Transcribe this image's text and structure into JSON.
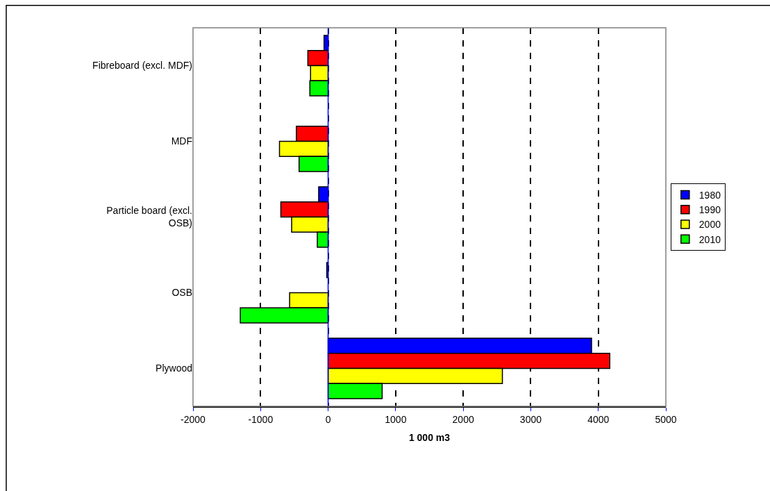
{
  "chart_data": {
    "type": "bar",
    "orientation": "horizontal",
    "xlabel": "1 000 m3",
    "categories": [
      "Fibreboard (excl. MDF)",
      "MDF",
      "Particle board (excl. OSB)",
      "OSB",
      "Plywood"
    ],
    "series": [
      {
        "name": "1980",
        "color": "#0000ff",
        "values": [
          -60,
          null,
          -140,
          -20,
          3900
        ]
      },
      {
        "name": "1990",
        "color": "#ff0000",
        "values": [
          -300,
          -470,
          -700,
          null,
          4170
        ]
      },
      {
        "name": "2000",
        "color": "#ffff00",
        "values": [
          -260,
          -720,
          -540,
          -570,
          2580
        ]
      },
      {
        "name": "2010",
        "color": "#00ff00",
        "values": [
          -270,
          -430,
          -160,
          -1300,
          800
        ]
      }
    ],
    "xlim": [
      -2000,
      5000
    ],
    "xticks": [
      -2000,
      -1000,
      0,
      1000,
      2000,
      3000,
      4000,
      5000
    ],
    "ref_lines": [
      {
        "axis": "x",
        "value": 0,
        "color": "#0000ff"
      }
    ],
    "grid": "x",
    "legend": "right"
  }
}
